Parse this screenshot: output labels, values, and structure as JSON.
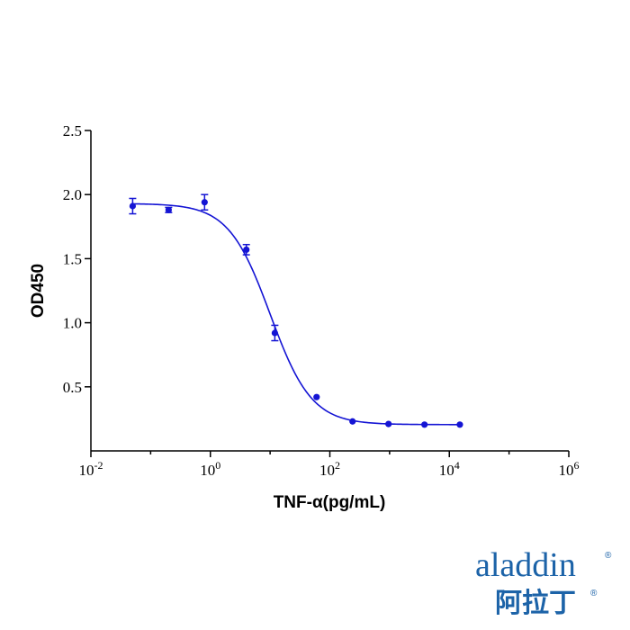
{
  "chart_data": {
    "type": "scatter",
    "title": "",
    "xlabel": "TNF-α(pg/mL)",
    "ylabel": "OD450",
    "x_scale": "log",
    "xlim": [
      0.01,
      1000000
    ],
    "ylim": [
      0,
      2.5
    ],
    "x_ticks": [
      {
        "base": "10",
        "exp": "-2"
      },
      {
        "base": "10",
        "exp": "0"
      },
      {
        "base": "10",
        "exp": "2"
      },
      {
        "base": "10",
        "exp": "4"
      },
      {
        "base": "10",
        "exp": "6"
      }
    ],
    "y_ticks": [
      "0.5",
      "1.0",
      "1.5",
      "2.0",
      "2.5"
    ],
    "y_tick_values": [
      0.5,
      1.0,
      1.5,
      2.0,
      2.5
    ],
    "grid": false,
    "legend": "none",
    "series": [
      {
        "color": "#1414d4",
        "points": [
          {
            "x": 0.05,
            "y": 1.91,
            "err": 0.06
          },
          {
            "x": 0.2,
            "y": 1.88,
            "err": 0.02
          },
          {
            "x": 0.8,
            "y": 1.94,
            "err": 0.06
          },
          {
            "x": 4.0,
            "y": 1.57,
            "err": 0.04
          },
          {
            "x": 12.0,
            "y": 0.92,
            "err": 0.06
          },
          {
            "x": 60.0,
            "y": 0.42,
            "err": 0.0
          },
          {
            "x": 240.0,
            "y": 0.23,
            "err": 0.0
          },
          {
            "x": 960.0,
            "y": 0.21,
            "err": 0.0
          },
          {
            "x": 3840.0,
            "y": 0.205,
            "err": 0.0
          },
          {
            "x": 15000.0,
            "y": 0.205,
            "err": 0.0
          }
        ],
        "fit": {
          "model": "4PL",
          "top": 1.93,
          "bottom": 0.205,
          "ec50": 10.0,
          "hill": 1.25,
          "x_range": [
            0.05,
            15000.0
          ]
        }
      }
    ]
  },
  "logo": {
    "word": "aladdin",
    "mark": "®",
    "chinese": "阿拉丁"
  }
}
